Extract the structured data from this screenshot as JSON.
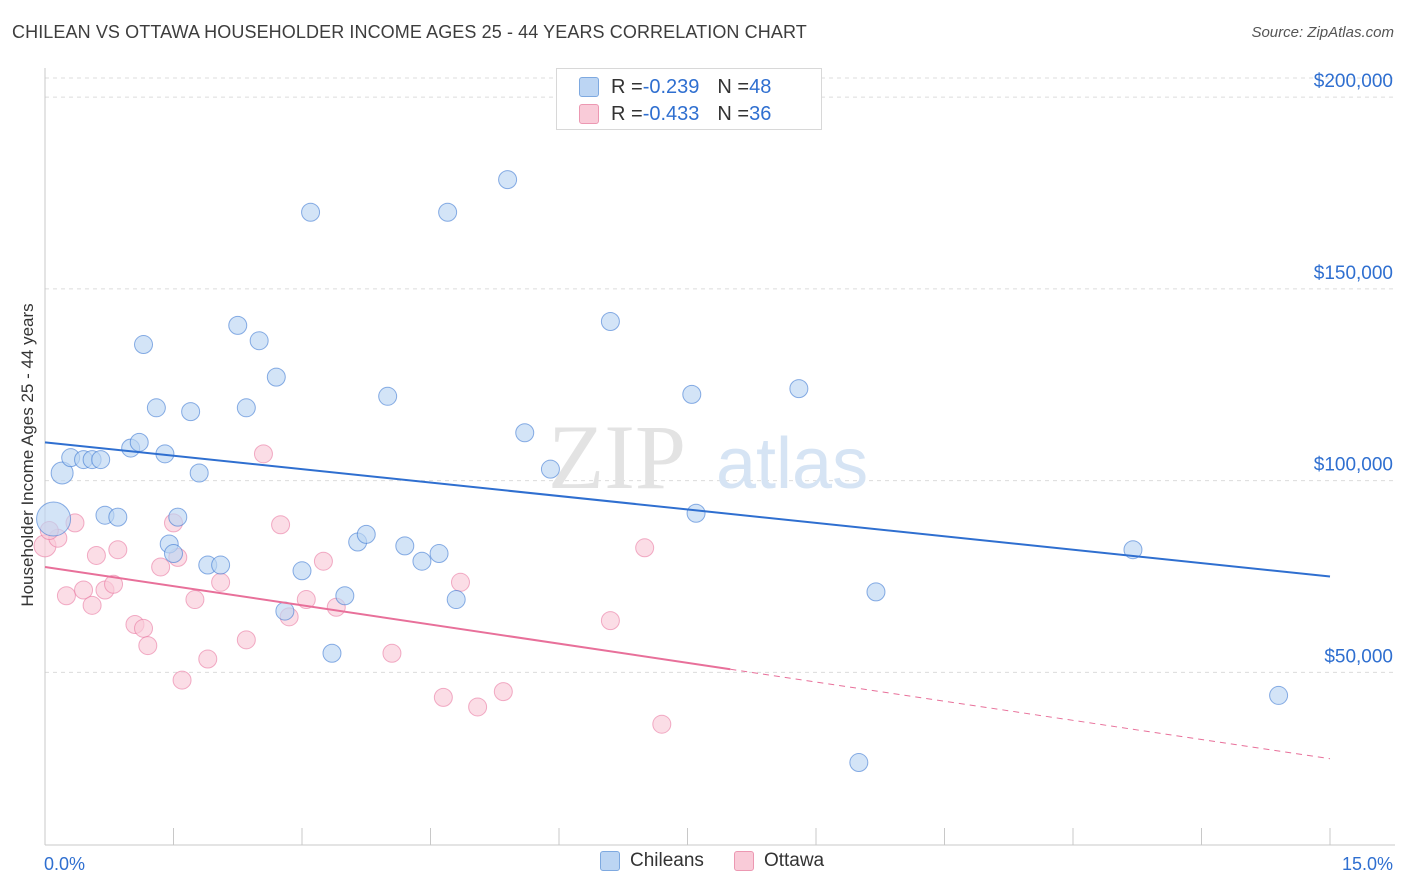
{
  "title": "CHILEAN VS OTTAWA HOUSEHOLDER INCOME AGES 25 - 44 YEARS CORRELATION CHART",
  "source": "Source: ZipAtlas.com",
  "watermark": {
    "zip": "ZIP",
    "atlas": "atlas"
  },
  "legend": {
    "series1": {
      "r_label": "R = ",
      "r_value": "-0.239",
      "n_label": "N = ",
      "n_value": "48"
    },
    "series2": {
      "r_label": "R = ",
      "r_value": "-0.433",
      "n_label": "N = ",
      "n_value": "36"
    }
  },
  "bottom_legend": [
    "Chileans",
    "Ottawa"
  ],
  "chart_data": {
    "type": "scatter",
    "xlabel": "",
    "ylabel": "Householder Income Ages 25 - 44 years",
    "x_tick_labels": [
      "0.0%",
      "15.0%"
    ],
    "y_tick_labels": [
      "$200,000",
      "$150,000",
      "$100,000",
      "$50,000"
    ],
    "y_ticks": [
      200000,
      150000,
      100000,
      50000
    ],
    "xlim": [
      0,
      15
    ],
    "ylim": [
      5000,
      205000
    ],
    "grid": true,
    "colors": {
      "blue": "#2f6fd0",
      "blue_fill": "#bcd5f3",
      "pink": "#e8709a",
      "pink_fill": "#f9cbd8"
    },
    "series": [
      {
        "name": "Chileans",
        "color": "#2f6fd0",
        "fill": "#bcd5f3",
        "trend": {
          "x": [
            0,
            15
          ],
          "y": [
            110000,
            75000
          ],
          "dashed_from": null
        },
        "points": [
          [
            0.1,
            90000,
            34
          ],
          [
            0.2,
            102000,
            22
          ],
          [
            0.3,
            106000,
            18
          ],
          [
            0.45,
            105500,
            18
          ],
          [
            0.55,
            105500,
            18
          ],
          [
            0.65,
            105500,
            18
          ],
          [
            0.7,
            91000,
            18
          ],
          [
            0.85,
            90500,
            18
          ],
          [
            1.0,
            108500,
            18
          ],
          [
            1.1,
            110000,
            18
          ],
          [
            1.15,
            135500,
            18
          ],
          [
            1.3,
            119000,
            18
          ],
          [
            1.4,
            107000,
            18
          ],
          [
            1.45,
            83500,
            18
          ],
          [
            1.5,
            81000,
            18
          ],
          [
            1.55,
            90500,
            18
          ],
          [
            1.7,
            118000,
            18
          ],
          [
            1.8,
            102000,
            18
          ],
          [
            1.9,
            78000,
            18
          ],
          [
            2.05,
            78000,
            18
          ],
          [
            2.25,
            140500,
            18
          ],
          [
            2.35,
            119000,
            18
          ],
          [
            2.5,
            136500,
            18
          ],
          [
            2.7,
            127000,
            18
          ],
          [
            2.8,
            66000,
            18
          ],
          [
            3.0,
            76500,
            18
          ],
          [
            3.1,
            170000,
            18
          ],
          [
            3.35,
            55000,
            18
          ],
          [
            3.5,
            70000,
            18
          ],
          [
            3.65,
            84000,
            18
          ],
          [
            3.75,
            86000,
            18
          ],
          [
            4.0,
            122000,
            18
          ],
          [
            4.2,
            83000,
            18
          ],
          [
            4.4,
            79000,
            18
          ],
          [
            4.6,
            81000,
            18
          ],
          [
            4.8,
            69000,
            18
          ],
          [
            4.7,
            170000,
            18
          ],
          [
            5.4,
            178500,
            18
          ],
          [
            5.6,
            112500,
            18
          ],
          [
            5.9,
            103000,
            18
          ],
          [
            6.6,
            141500,
            18
          ],
          [
            7.55,
            122500,
            18
          ],
          [
            7.6,
            91500,
            18
          ],
          [
            8.8,
            124000,
            18
          ],
          [
            9.5,
            26500,
            18
          ],
          [
            9.7,
            71000,
            18
          ],
          [
            12.7,
            82000,
            18
          ],
          [
            14.4,
            44000,
            18
          ]
        ]
      },
      {
        "name": "Ottawa",
        "color": "#e8709a",
        "fill": "#f9cbd8",
        "trend": {
          "x": [
            0,
            15
          ],
          "y": [
            77500,
            27500
          ],
          "dashed_from": 8.0
        },
        "points": [
          [
            0.0,
            83000,
            22
          ],
          [
            0.15,
            85000,
            18
          ],
          [
            0.25,
            70000,
            18
          ],
          [
            0.35,
            89000,
            18
          ],
          [
            0.45,
            71500,
            18
          ],
          [
            0.55,
            67500,
            18
          ],
          [
            0.6,
            80500,
            18
          ],
          [
            0.7,
            71500,
            18
          ],
          [
            0.8,
            73000,
            18
          ],
          [
            0.85,
            82000,
            18
          ],
          [
            1.05,
            62500,
            18
          ],
          [
            1.15,
            61500,
            18
          ],
          [
            1.2,
            57000,
            18
          ],
          [
            1.35,
            77500,
            18
          ],
          [
            1.5,
            89000,
            18
          ],
          [
            1.55,
            80000,
            18
          ],
          [
            1.6,
            48000,
            18
          ],
          [
            1.75,
            69000,
            18
          ],
          [
            1.9,
            53500,
            18
          ],
          [
            2.05,
            73500,
            18
          ],
          [
            2.35,
            58500,
            18
          ],
          [
            2.55,
            107000,
            18
          ],
          [
            2.75,
            88500,
            18
          ],
          [
            2.85,
            64500,
            18
          ],
          [
            3.05,
            69000,
            18
          ],
          [
            3.25,
            79000,
            18
          ],
          [
            3.4,
            67000,
            18
          ],
          [
            4.05,
            55000,
            18
          ],
          [
            4.65,
            43500,
            18
          ],
          [
            4.85,
            73500,
            18
          ],
          [
            5.05,
            41000,
            18
          ],
          [
            5.35,
            45000,
            18
          ],
          [
            6.6,
            63500,
            18
          ],
          [
            7.0,
            82500,
            18
          ],
          [
            7.2,
            36500,
            18
          ],
          [
            0.05,
            87000,
            18
          ]
        ]
      }
    ]
  }
}
